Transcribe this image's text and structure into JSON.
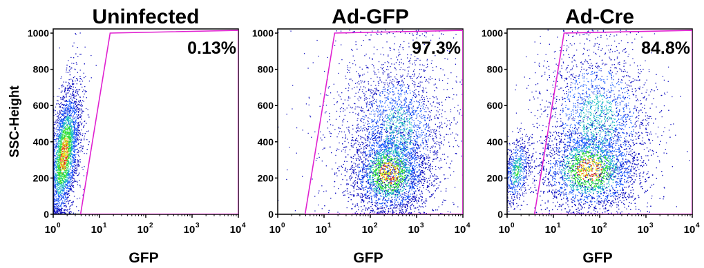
{
  "chart_data": [
    {
      "type": "scatter",
      "title": "Uninfected",
      "xlabel": "GFP",
      "ylabel": "SSC-Height",
      "x_scale": "log",
      "xlim": [
        1,
        10000
      ],
      "ylim": [
        0,
        1023
      ],
      "x_ticks": [
        {
          "base": "10",
          "exp": "0"
        },
        {
          "base": "10",
          "exp": "1"
        },
        {
          "base": "10",
          "exp": "2"
        },
        {
          "base": "10",
          "exp": "3"
        },
        {
          "base": "10",
          "exp": "4"
        }
      ],
      "y_ticks": [
        "0",
        "200",
        "400",
        "600",
        "800",
        "1000"
      ],
      "gate_percent_label": "0.13%",
      "gate_percent": 0.13,
      "gate_polygon": [
        [
          3.9,
          0
        ],
        [
          17,
          1000
        ],
        [
          10000,
          1015
        ],
        [
          10000,
          0
        ]
      ],
      "gate_color": "#e020d0",
      "colormap": [
        "#1010c0",
        "#2060ff",
        "#20c0c0",
        "#30e030",
        "#f0e020",
        "#e02020"
      ],
      "populations": [
        {
          "name": "main",
          "count": 3800,
          "x_median": 1.7,
          "x_spread_log": 0.18,
          "y_mean": 330,
          "y_sd": 170,
          "tilt": 0.55,
          "density": 1.0
        }
      ]
    },
    {
      "type": "scatter",
      "title": "Ad-GFP",
      "xlabel": "GFP",
      "ylabel": "",
      "x_scale": "log",
      "xlim": [
        1,
        10000
      ],
      "ylim": [
        0,
        1023
      ],
      "x_ticks": [
        {
          "base": "10",
          "exp": "0"
        },
        {
          "base": "10",
          "exp": "1"
        },
        {
          "base": "10",
          "exp": "2"
        },
        {
          "base": "10",
          "exp": "3"
        },
        {
          "base": "10",
          "exp": "4"
        }
      ],
      "y_ticks": [
        "0",
        "200",
        "400",
        "600",
        "800",
        "1000"
      ],
      "gate_percent_label": "97.3%",
      "gate_percent": 97.3,
      "gate_polygon": [
        [
          3.9,
          0
        ],
        [
          17,
          1000
        ],
        [
          10000,
          1015
        ],
        [
          10000,
          0
        ]
      ],
      "gate_color": "#e020d0",
      "colormap": [
        "#1010c0",
        "#2060ff",
        "#20c0c0",
        "#30e030",
        "#f0e020",
        "#e02020"
      ],
      "populations": [
        {
          "name": "main",
          "count": 5200,
          "x_median": 250,
          "x_spread_log": 0.42,
          "y_mean": 230,
          "y_sd": 120,
          "tilt": 0.0,
          "density": 1.0
        },
        {
          "name": "upper",
          "count": 1800,
          "x_median": 400,
          "x_spread_log": 0.5,
          "y_mean": 460,
          "y_sd": 200,
          "tilt": 0.0,
          "density": 0.5
        },
        {
          "name": "sparse",
          "count": 900,
          "x_median": 300,
          "x_spread_log": 0.9,
          "y_mean": 500,
          "y_sd": 280,
          "tilt": 0.0,
          "density": 0.2
        }
      ]
    },
    {
      "type": "scatter",
      "title": "Ad-Cre",
      "xlabel": "GFP",
      "ylabel": "",
      "x_scale": "log",
      "xlim": [
        1,
        10000
      ],
      "ylim": [
        0,
        1023
      ],
      "x_ticks": [
        {
          "base": "10",
          "exp": "0"
        },
        {
          "base": "10",
          "exp": "1"
        },
        {
          "base": "10",
          "exp": "2"
        },
        {
          "base": "10",
          "exp": "3"
        },
        {
          "base": "10",
          "exp": "4"
        }
      ],
      "y_ticks": [
        "0",
        "200",
        "400",
        "600",
        "800",
        "1000"
      ],
      "gate_percent_label": "84.8%",
      "gate_percent": 84.8,
      "gate_polygon": [
        [
          3.9,
          0
        ],
        [
          17,
          1000
        ],
        [
          10000,
          1015
        ],
        [
          10000,
          0
        ]
      ],
      "gate_color": "#e020d0",
      "colormap": [
        "#1010c0",
        "#2060ff",
        "#20c0c0",
        "#30e030",
        "#f0e020",
        "#e02020"
      ],
      "populations": [
        {
          "name": "main",
          "count": 4800,
          "x_median": 60,
          "x_spread_log": 0.55,
          "y_mean": 250,
          "y_sd": 120,
          "tilt": 0.0,
          "density": 1.0
        },
        {
          "name": "upper",
          "count": 2400,
          "x_median": 90,
          "x_spread_log": 0.6,
          "y_mean": 520,
          "y_sd": 220,
          "tilt": 0.0,
          "density": 0.5
        },
        {
          "name": "negative",
          "count": 700,
          "x_median": 1.6,
          "x_spread_log": 0.15,
          "y_mean": 240,
          "y_sd": 90,
          "tilt": 0.3,
          "density": 0.6
        }
      ]
    }
  ]
}
